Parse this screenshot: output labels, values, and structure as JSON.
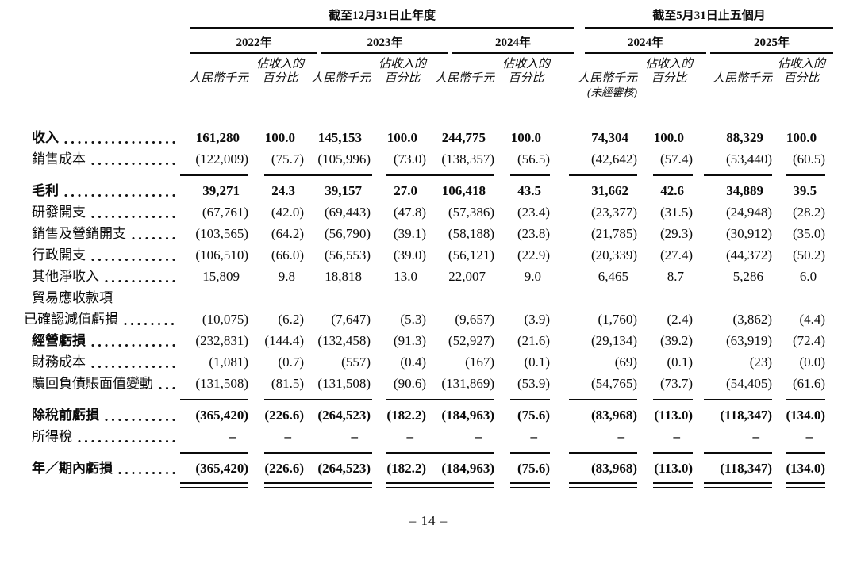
{
  "header": {
    "group1": "截至12月31日止年度",
    "group2": "截至5月31日止五個月",
    "years": [
      "2022年",
      "2023年",
      "2024年",
      "2024年",
      "2025年"
    ],
    "rmb_label": "人民幣千元",
    "pct_label_l1": "佔收入的",
    "pct_label_l2": "百分比",
    "unaudited": "(未經審核)"
  },
  "rows": [
    {
      "kind": "data",
      "label": "收入",
      "bold_label": true,
      "bold_values": true,
      "values": [
        "161,280",
        "100.0",
        "145,153",
        "100.0",
        "244,775",
        "100.0",
        "74,304",
        "100.0",
        "88,329",
        "100.0"
      ]
    },
    {
      "kind": "data",
      "label": "銷售成本",
      "values": [
        "(122,009)",
        "(75.7)",
        "(105,996)",
        "(73.0)",
        "(138,357)",
        "(56.5)",
        "(42,642)",
        "(57.4)",
        "(53,440)",
        "(60.5)"
      ]
    },
    {
      "kind": "rule"
    },
    {
      "kind": "data",
      "label": "毛利",
      "bold_label": true,
      "bold_values": true,
      "values": [
        "39,271",
        "24.3",
        "39,157",
        "27.0",
        "106,418",
        "43.5",
        "31,662",
        "42.6",
        "34,889",
        "39.5"
      ]
    },
    {
      "kind": "data",
      "label": "研發開支",
      "values": [
        "(67,761)",
        "(42.0)",
        "(69,443)",
        "(47.8)",
        "(57,386)",
        "(23.4)",
        "(23,377)",
        "(31.5)",
        "(24,948)",
        "(28.2)"
      ]
    },
    {
      "kind": "data",
      "label": "銷售及營銷開支",
      "values": [
        "(103,565)",
        "(64.2)",
        "(56,790)",
        "(39.1)",
        "(58,188)",
        "(23.8)",
        "(21,785)",
        "(29.3)",
        "(30,912)",
        "(35.0)"
      ]
    },
    {
      "kind": "data",
      "label": "行政開支",
      "values": [
        "(106,510)",
        "(66.0)",
        "(56,553)",
        "(39.0)",
        "(56,121)",
        "(22.9)",
        "(20,339)",
        "(27.4)",
        "(44,372)",
        "(50.2)"
      ]
    },
    {
      "kind": "data",
      "label": "其他淨收入",
      "values": [
        "15,809",
        "9.8",
        "18,818",
        "13.0",
        "22,007",
        "9.0",
        "6,465",
        "8.7",
        "5,286",
        "6.0"
      ]
    },
    {
      "kind": "label",
      "label": "貿易應收款項"
    },
    {
      "kind": "data",
      "label": "已確認減值虧損",
      "indent": true,
      "values": [
        "(10,075)",
        "(6.2)",
        "(7,647)",
        "(5.3)",
        "(9,657)",
        "(3.9)",
        "(1,760)",
        "(2.4)",
        "(3,862)",
        "(4.4)"
      ]
    },
    {
      "kind": "data",
      "label": "經營虧損",
      "bold_label": true,
      "values": [
        "(232,831)",
        "(144.4)",
        "(132,458)",
        "(91.3)",
        "(52,927)",
        "(21.6)",
        "(29,134)",
        "(39.2)",
        "(63,919)",
        "(72.4)"
      ]
    },
    {
      "kind": "data",
      "label": "財務成本",
      "values": [
        "(1,081)",
        "(0.7)",
        "(557)",
        "(0.4)",
        "(167)",
        "(0.1)",
        "(69)",
        "(0.1)",
        "(23)",
        "(0.0)"
      ]
    },
    {
      "kind": "data",
      "label": "贖回負債賬面值變動",
      "values": [
        "(131,508)",
        "(81.5)",
        "(131,508)",
        "(90.6)",
        "(131,869)",
        "(53.9)",
        "(54,765)",
        "(73.7)",
        "(54,405)",
        "(61.6)"
      ]
    },
    {
      "kind": "rule"
    },
    {
      "kind": "data",
      "label": "除稅前虧損",
      "bold_label": true,
      "bold_values": true,
      "values": [
        "(365,420)",
        "(226.6)",
        "(264,523)",
        "(182.2)",
        "(184,963)",
        "(75.6)",
        "(83,968)",
        "(113.0)",
        "(118,347)",
        "(134.0)"
      ]
    },
    {
      "kind": "data",
      "label": "所得稅",
      "values": [
        "–",
        "–",
        "–",
        "–",
        "–",
        "–",
        "–",
        "–",
        "–",
        "–"
      ]
    },
    {
      "kind": "rule"
    },
    {
      "kind": "data",
      "label": "年／期內虧損",
      "bold_label": true,
      "bold_values": true,
      "values": [
        "(365,420)",
        "(226.6)",
        "(264,523)",
        "(182.2)",
        "(184,963)",
        "(75.6)",
        "(83,968)",
        "(113.0)",
        "(118,347)",
        "(134.0)"
      ]
    },
    {
      "kind": "rule_double"
    }
  ],
  "page": {
    "footer": "– 14 –"
  }
}
